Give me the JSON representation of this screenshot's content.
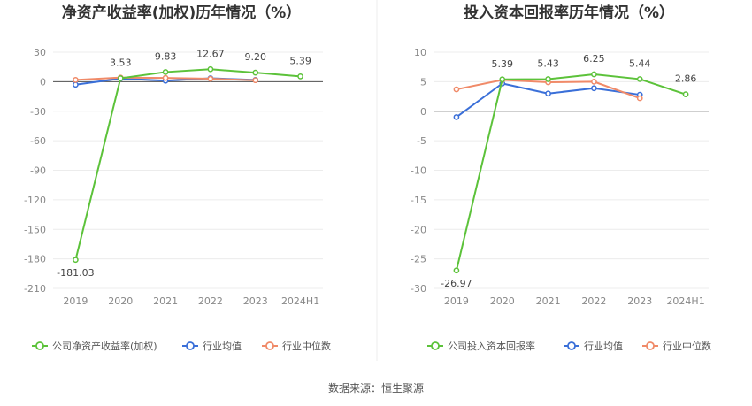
{
  "source": "数据来源：恒生聚源",
  "chart_data": [
    {
      "type": "line",
      "title": "净资产收益率(加权)历年情况（%）",
      "categories": [
        "2019",
        "2020",
        "2021",
        "2022",
        "2023",
        "2024H1"
      ],
      "yticks": [
        "30",
        "0",
        "-30",
        "-60",
        "-90",
        "-120",
        "-150",
        "-180",
        "-210"
      ],
      "ylim": [
        -210,
        30
      ],
      "grid": true,
      "legend_position": "bottom",
      "series": [
        {
          "name": "公司净资产收益率(加权)",
          "color": "#5cc23a",
          "values": [
            -181.03,
            3.53,
            9.83,
            12.67,
            9.2,
            5.39
          ],
          "labels": [
            "-181.03",
            "3.53",
            "9.83",
            "12.67",
            "9.20",
            "5.39"
          ]
        },
        {
          "name": "行业均值",
          "color": "#3a6fd8",
          "values": [
            -3.0,
            3.2,
            1.0,
            3.5,
            1.8,
            null
          ]
        },
        {
          "name": "行业中位数",
          "color": "#f08a68",
          "values": [
            1.8,
            4.2,
            3.8,
            3.0,
            1.5,
            null
          ]
        }
      ]
    },
    {
      "type": "line",
      "title": "投入资本回报率历年情况（%）",
      "categories": [
        "2019",
        "2020",
        "2021",
        "2022",
        "2023",
        "2024H1"
      ],
      "yticks": [
        "10",
        "5",
        "0",
        "-5",
        "-10",
        "-15",
        "-20",
        "-25",
        "-30"
      ],
      "ylim": [
        -30,
        10
      ],
      "grid": true,
      "legend_position": "bottom",
      "series": [
        {
          "name": "公司投入资本回报率",
          "color": "#5cc23a",
          "values": [
            -26.97,
            5.39,
            5.43,
            6.25,
            5.44,
            2.86
          ],
          "labels": [
            "-26.97",
            "5.39",
            "5.43",
            "6.25",
            "5.44",
            "2.86"
          ]
        },
        {
          "name": "行业均值",
          "color": "#3a6fd8",
          "values": [
            -1.0,
            4.7,
            3.0,
            3.9,
            2.8,
            null
          ]
        },
        {
          "name": "行业中位数",
          "color": "#f08a68",
          "values": [
            3.7,
            5.3,
            4.9,
            5.0,
            2.2,
            null
          ]
        }
      ]
    }
  ]
}
